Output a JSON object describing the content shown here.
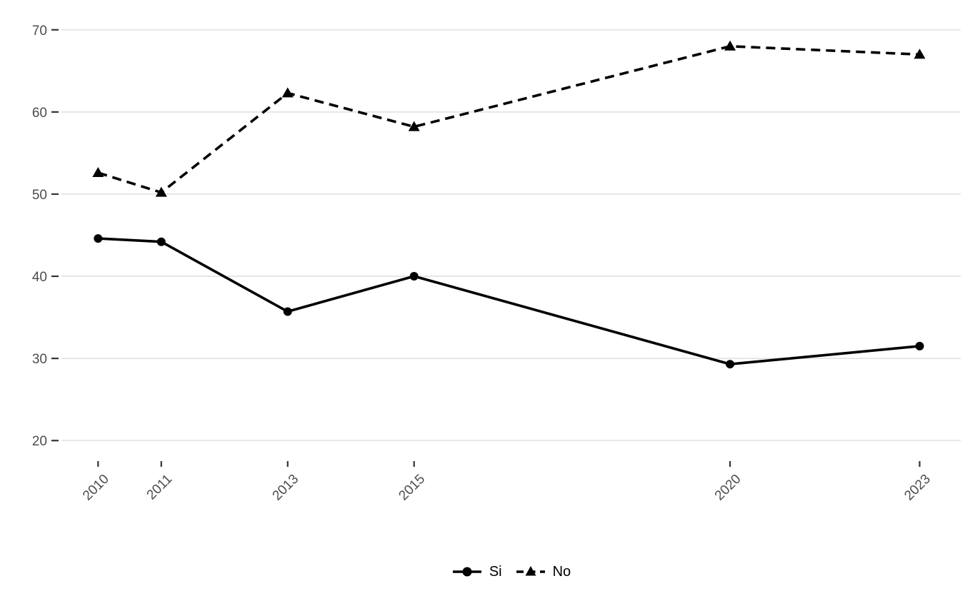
{
  "chart_data": {
    "type": "line",
    "title": "",
    "xlabel": "",
    "ylabel": "",
    "x": [
      2010,
      2011,
      2013,
      2015,
      2020,
      2023
    ],
    "x_tick_labels": [
      "2010",
      "2011",
      "2013",
      "2015",
      "2020",
      "2023"
    ],
    "y_ticks": [
      20,
      30,
      40,
      50,
      60,
      70
    ],
    "y_tick_labels": [
      "20",
      "30",
      "40",
      "50",
      "60",
      "70"
    ],
    "xlim": [
      2009.42,
      2023.65
    ],
    "ylim": [
      17.5,
      72.5
    ],
    "grid": "horizontal-major-only",
    "legend_position": "bottom-center",
    "series": [
      {
        "name": "Si",
        "values": [
          44.6,
          44.2,
          35.7,
          40.0,
          29.3,
          31.5
        ],
        "line_style": "solid",
        "marker": "circle"
      },
      {
        "name": "No",
        "values": [
          52.6,
          50.2,
          62.3,
          58.2,
          68.0,
          67.0
        ],
        "line_style": "dashed",
        "marker": "triangle"
      }
    ],
    "colors": {
      "series": "#000000",
      "grid": "#e4e4e4",
      "axis_text": "#4d4d4d",
      "tick": "#333333",
      "background": "#ffffff",
      "legend_text": "#000000"
    }
  }
}
